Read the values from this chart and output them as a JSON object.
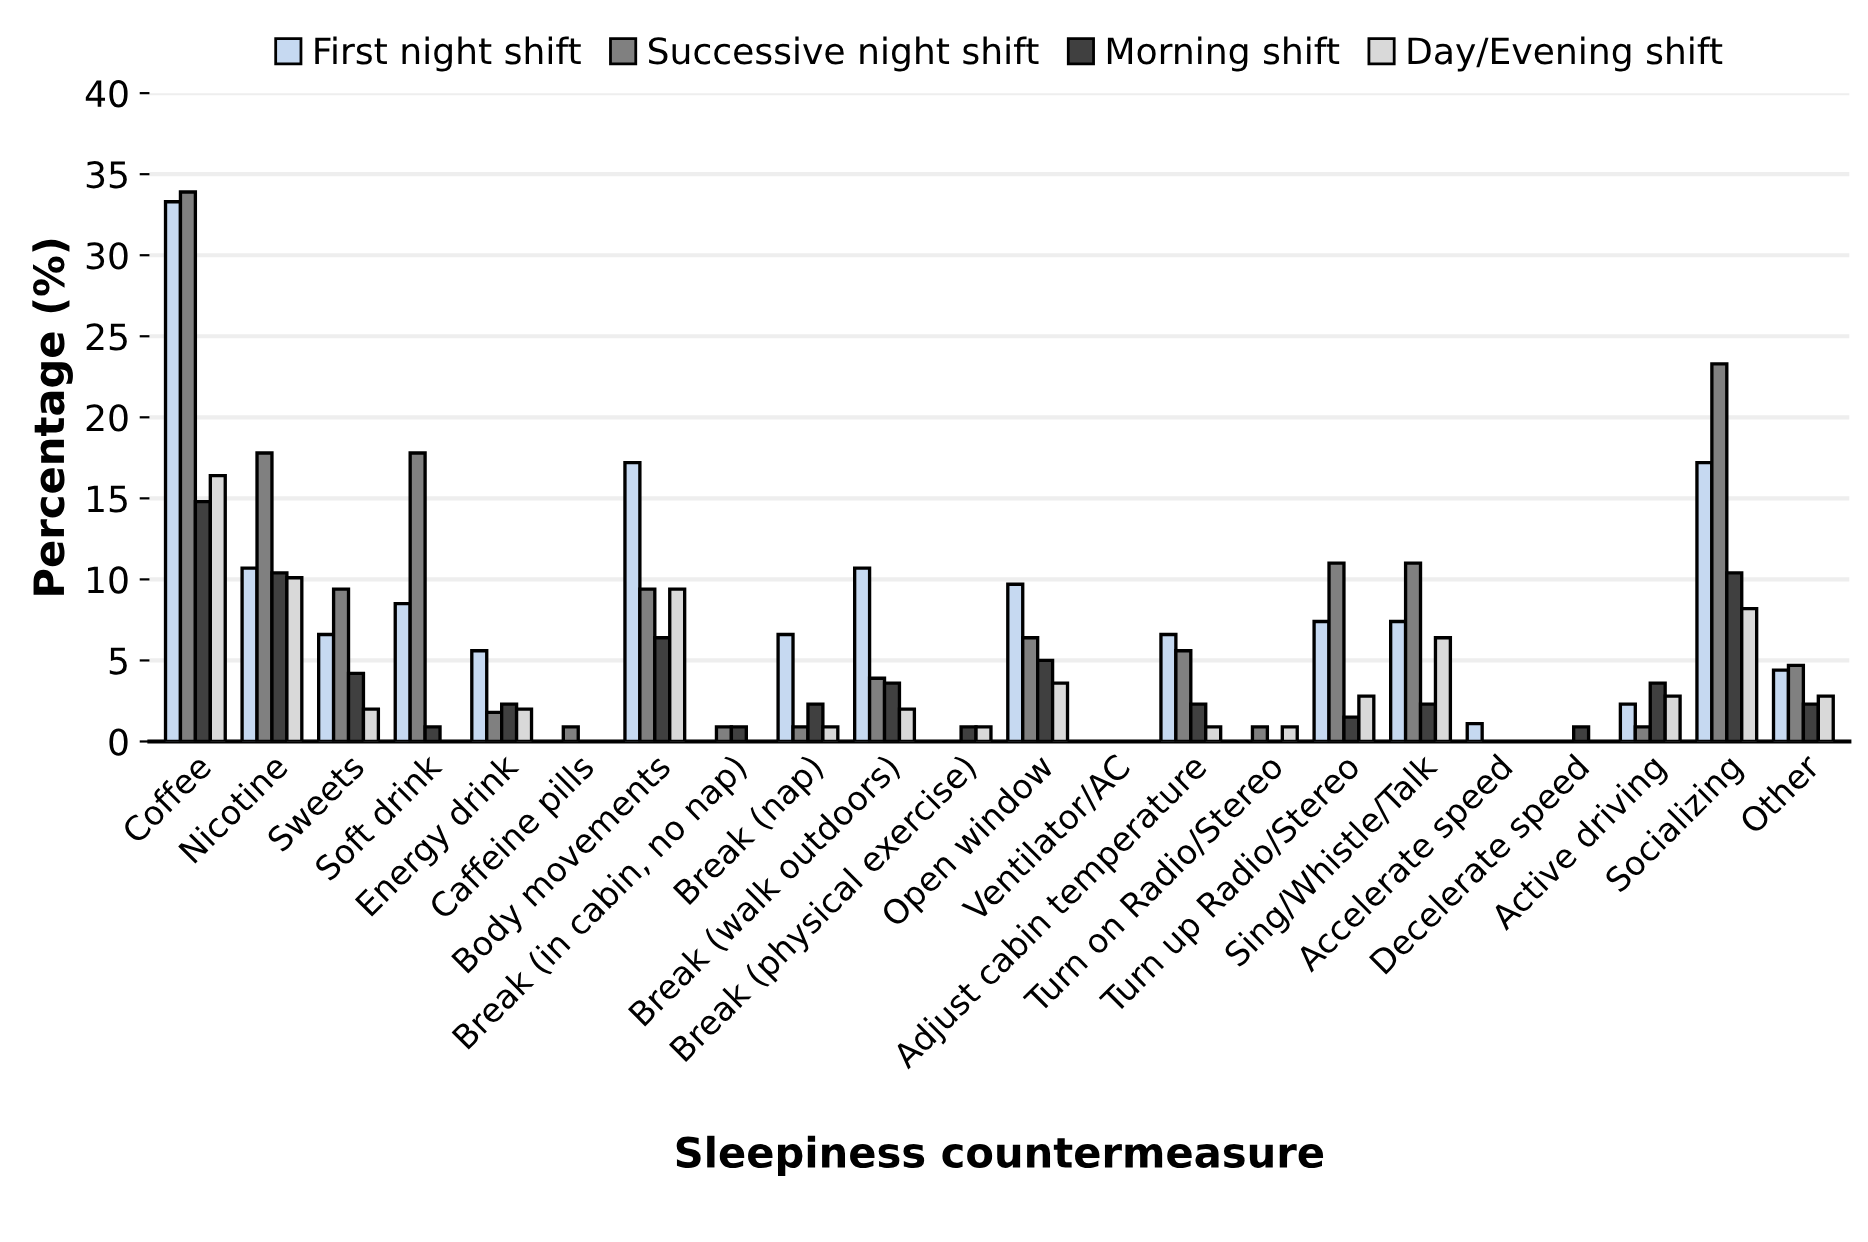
{
  "chart_data": {
    "type": "bar",
    "xlabel": "Sleepiness countermeasure",
    "ylabel": "Percentage (%)",
    "categories": [
      "Coffee",
      "Nicotine",
      "Sweets",
      "Soft drink",
      "Energy drink",
      "Caffeine pills",
      "Body movements",
      "Break (in cabin, no nap)",
      "Break (nap)",
      "Break (walk outdoors)",
      "Break (physical exercise)",
      "Open window",
      "Ventilator/AC",
      "Adjust cabin temperature",
      "Turn on Radio/Stereo",
      "Turn up Radio/Stereo",
      "Sing/Whistle/Talk",
      "Accelerate speed",
      "Decelerate speed",
      "Active driving",
      "Socializing",
      "Other"
    ],
    "series": [
      {
        "name": "First night shift",
        "color": "#c6d9f1",
        "values": [
          33.3,
          10.7,
          6.6,
          8.5,
          5.6,
          null,
          17.2,
          null,
          6.6,
          10.7,
          null,
          9.7,
          null,
          6.6,
          null,
          7.4,
          7.4,
          1.1,
          null,
          2.3,
          17.2,
          4.4
        ]
      },
      {
        "name": "Successive night shift",
        "color": "#808080",
        "values": [
          33.9,
          17.8,
          9.4,
          17.8,
          1.8,
          0.9,
          9.4,
          0.9,
          0.9,
          3.9,
          null,
          6.4,
          null,
          5.6,
          0.9,
          11.0,
          11.0,
          null,
          null,
          0.9,
          23.3,
          4.7
        ]
      },
      {
        "name": "Morning shift",
        "color": "#404040",
        "values": [
          14.8,
          10.4,
          4.2,
          0.9,
          2.3,
          null,
          6.4,
          0.9,
          2.3,
          3.6,
          0.9,
          5.0,
          null,
          2.3,
          null,
          1.5,
          2.3,
          null,
          0.9,
          3.6,
          10.4,
          2.3
        ]
      },
      {
        "name": "Day/Evening shift",
        "color": "#d9d9d9",
        "values": [
          16.4,
          10.1,
          2.0,
          null,
          2.0,
          null,
          9.4,
          null,
          0.9,
          2.0,
          0.9,
          3.6,
          null,
          0.9,
          0.9,
          2.8,
          6.4,
          null,
          null,
          2.8,
          8.2,
          2.8
        ]
      }
    ],
    "ylim": [
      0,
      40
    ],
    "yticks": [
      0,
      5,
      10,
      15,
      20,
      25,
      30,
      35,
      40
    ],
    "grid": "y",
    "legend": "top"
  }
}
